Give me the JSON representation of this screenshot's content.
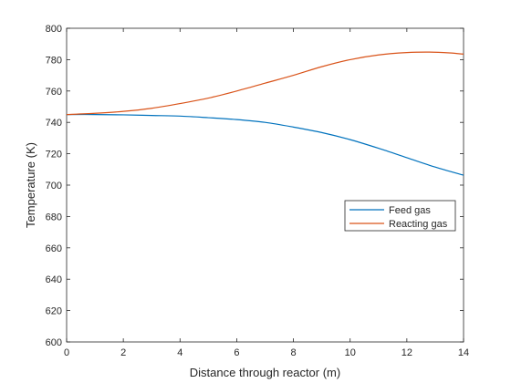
{
  "chart_data": {
    "type": "line",
    "title": "",
    "xlabel": "Distance through reactor (m)",
    "ylabel": "Temperature (K)",
    "xlim": [
      0,
      14
    ],
    "ylim": [
      600,
      800
    ],
    "xticks": [
      0,
      2,
      4,
      6,
      8,
      10,
      12,
      14
    ],
    "yticks": [
      600,
      620,
      640,
      660,
      680,
      700,
      720,
      740,
      760,
      780,
      800
    ],
    "grid": false,
    "legend": {
      "position": "right",
      "box": true
    },
    "series": [
      {
        "name": "Feed gas",
        "color": "#0072BD",
        "x": [
          0,
          1,
          2,
          3,
          4,
          5,
          6,
          7,
          8,
          9,
          10,
          11,
          12,
          13,
          14
        ],
        "y": [
          745.0,
          745.0,
          744.8,
          744.4,
          744.0,
          743.0,
          741.8,
          740.0,
          737.0,
          733.5,
          729.0,
          723.5,
          717.5,
          711.5,
          706.3
        ]
      },
      {
        "name": "Reacting gas",
        "color": "#D95319",
        "x": [
          0,
          1,
          2,
          3,
          4,
          5,
          6,
          7,
          8,
          9,
          10,
          11,
          12,
          12.8,
          13.5,
          14
        ],
        "y": [
          745.0,
          745.8,
          747.0,
          749.0,
          752.0,
          755.5,
          760.0,
          765.0,
          770.0,
          775.5,
          780.0,
          783.0,
          784.5,
          784.8,
          784.3,
          783.5
        ]
      }
    ]
  }
}
